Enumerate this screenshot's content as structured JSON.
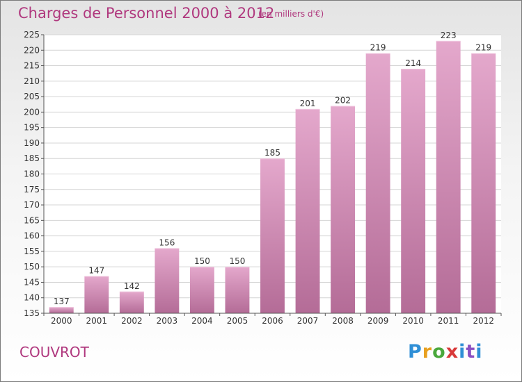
{
  "header": {
    "title": "Charges de Personnel 2000 à 2012",
    "subtitle": "(en milliers d'€)"
  },
  "footer": {
    "commune": "COUVROT",
    "logo": "Proxiti",
    "logo_letters": [
      "P",
      "r",
      "o",
      "x",
      "i",
      "t",
      "i"
    ],
    "logo_colors": [
      "#2f8fd6",
      "#e8a020",
      "#4aa83c",
      "#d93a3a",
      "#2f8fd6",
      "#8a4fc2",
      "#2f8fd6"
    ]
  },
  "colors": {
    "bar_top": "#e4a8cc",
    "bar_bottom": "#b46c97",
    "text": "#b0387e"
  },
  "chart_data": {
    "type": "bar",
    "title": "Charges de Personnel 2000 à 2012",
    "subtitle": "(en milliers d'€)",
    "categories": [
      "2000",
      "2001",
      "2002",
      "2003",
      "2004",
      "2005",
      "2006",
      "2007",
      "2008",
      "2009",
      "2010",
      "2011",
      "2012"
    ],
    "values": [
      137,
      147,
      142,
      156,
      150,
      150,
      185,
      201,
      202,
      219,
      214,
      223,
      219
    ],
    "ylim": [
      135,
      225
    ],
    "yticks": [
      135,
      140,
      145,
      150,
      155,
      160,
      165,
      170,
      175,
      180,
      185,
      190,
      195,
      200,
      205,
      210,
      215,
      220,
      225
    ],
    "grid": true,
    "legend": "none"
  }
}
